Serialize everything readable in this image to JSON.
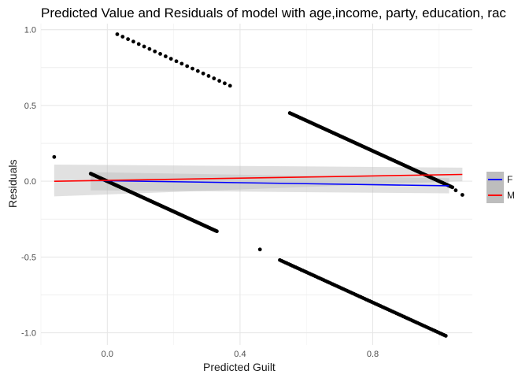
{
  "chart_data": {
    "type": "scatter",
    "title": "Predicted Value and Residuals of model with age,income, party, education, rac",
    "xlabel": "Predicted Guilt",
    "ylabel": "Residuals",
    "xlim": [
      -0.2,
      1.1
    ],
    "ylim": [
      -1.08,
      1.04
    ],
    "x_ticks": [
      0.0,
      0.4,
      0.8
    ],
    "x_tick_labels": [
      "0.0",
      "0.4",
      "0.8"
    ],
    "y_ticks": [
      1.0,
      0.5,
      0.0,
      -0.5,
      -1.0
    ],
    "y_tick_labels": [
      "1.0",
      "0.5",
      "0.0",
      "-0.5",
      "-1.0"
    ],
    "grid": true,
    "legend_position": "right",
    "points": {
      "color": "#000000",
      "isolated": [
        [
          -0.16,
          0.16
        ],
        [
          1.07,
          -0.09
        ],
        [
          1.05,
          -0.06
        ],
        [
          0.46,
          -0.45
        ]
      ],
      "segments": [
        {
          "x_start": 0.03,
          "x_end": 0.37,
          "offset": 1.0,
          "n": 22
        },
        {
          "x_start": 0.55,
          "x_end": 1.04,
          "offset": 1.0,
          "n": 120
        },
        {
          "x_start": -0.05,
          "x_end": 0.33,
          "offset": 0.0,
          "n": 110
        },
        {
          "x_start": 0.52,
          "x_end": 1.02,
          "offset": 0.0,
          "n": 95
        }
      ]
    },
    "series": [
      {
        "name": "F",
        "color": "#0000ff",
        "x": [
          -0.05,
          1.03
        ],
        "y": [
          0.005,
          -0.03
        ]
      },
      {
        "name": "M",
        "color": "#ff0000",
        "x": [
          -0.16,
          1.07
        ],
        "y": [
          0.0,
          0.045
        ]
      }
    ],
    "band_color": "#bdbdbd"
  }
}
